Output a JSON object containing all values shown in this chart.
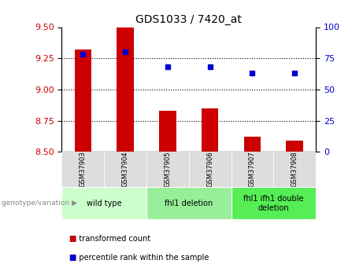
{
  "title": "GDS1033 / 7420_at",
  "samples": [
    "GSM37903",
    "GSM37904",
    "GSM37905",
    "GSM37906",
    "GSM37907",
    "GSM37908"
  ],
  "bar_values": [
    9.32,
    9.5,
    8.83,
    8.85,
    8.62,
    8.59
  ],
  "dot_values": [
    78,
    80,
    68,
    68,
    63,
    63
  ],
  "ylim_left": [
    8.5,
    9.5
  ],
  "ylim_right": [
    0,
    100
  ],
  "yticks_left": [
    8.5,
    8.75,
    9.0,
    9.25,
    9.5
  ],
  "yticks_right": [
    0,
    25,
    50,
    75,
    100
  ],
  "bar_color": "#cc0000",
  "dot_color": "#0000cc",
  "bar_bottom": 8.5,
  "groups": [
    {
      "label": "wild type",
      "start": 0,
      "end": 2,
      "color": "#ccffcc"
    },
    {
      "label": "fhl1 deletion",
      "start": 2,
      "end": 4,
      "color": "#99ee99"
    },
    {
      "label": "fhl1 ifh1 double\ndeletion",
      "start": 4,
      "end": 6,
      "color": "#55ee55"
    }
  ],
  "legend_items": [
    {
      "label": "transformed count",
      "color": "#cc0000"
    },
    {
      "label": "percentile rank within the sample",
      "color": "#0000cc"
    }
  ],
  "genotype_label": "genotype/variation",
  "background_color": "#ffffff",
  "tick_label_color_left": "#cc0000",
  "tick_label_color_right": "#0000cc",
  "sample_box_color": "#dddddd",
  "grid_lines": [
    9.25,
    9.0,
    8.75
  ],
  "bar_width": 0.4
}
